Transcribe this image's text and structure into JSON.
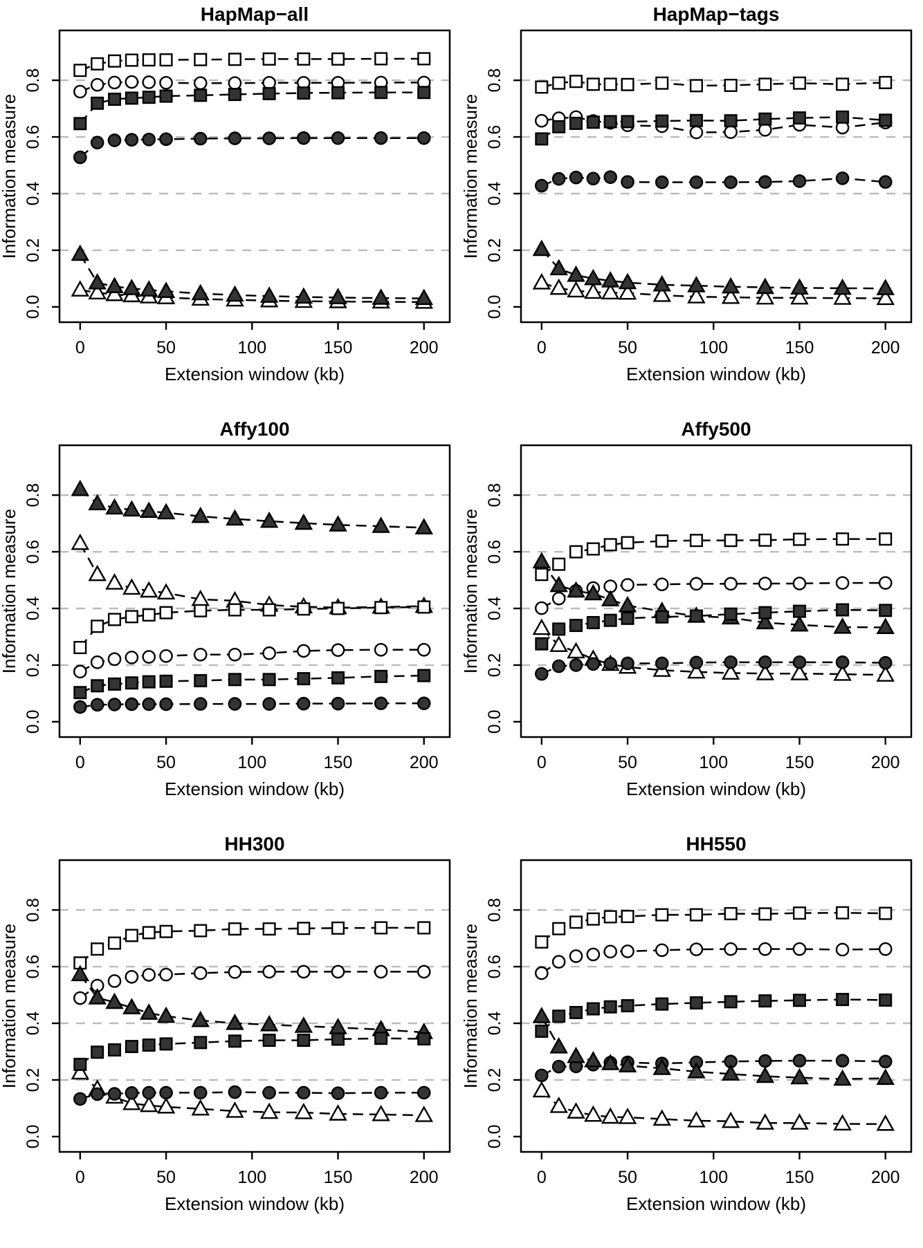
{
  "chart_data": {
    "type": "line",
    "layout": "2x3-grid",
    "legend": "none",
    "grid_on": true,
    "xlabel": "Extension window (kb)",
    "ylabel": "Information measure",
    "x": [
      0,
      10,
      20,
      30,
      40,
      50,
      70,
      90,
      110,
      130,
      150,
      175,
      200
    ],
    "xticks": [
      0,
      50,
      100,
      150,
      200
    ],
    "yticks": [
      "0.0",
      "0.2",
      "0.4",
      "0.6",
      "0.8"
    ],
    "ytick_values": [
      0.0,
      0.2,
      0.4,
      0.6,
      0.8
    ],
    "grid_y": [
      0.2,
      0.4,
      0.6,
      0.8
    ],
    "xlim": [
      -12,
      215
    ],
    "ylim": [
      -0.054,
      0.976
    ],
    "draw_order": [
      "open-circle",
      "open-triangle",
      "open-square",
      "filled-circle",
      "filled-triangle",
      "filled-square"
    ],
    "colors": {
      "marker_fill_dark": "#343434",
      "marker_fill_open": "#ffffff",
      "stroke": "#000000",
      "gridline": "#bbbbbb",
      "background": "#ffffff"
    },
    "marker_key": {
      "open-square": "square-open-icon",
      "filled-square": "square-filled-icon",
      "open-circle": "circle-open-icon",
      "filled-circle": "circle-filled-icon",
      "open-triangle": "triangle-open-icon",
      "filled-triangle": "triangle-filled-icon"
    },
    "panels": [
      {
        "id": "hapmap-all",
        "title": "HapMap−all",
        "series": [
          {
            "name": "open-square",
            "marker": "square",
            "filled": false,
            "values": [
              0.835,
              0.858,
              0.868,
              0.871,
              0.872,
              0.872,
              0.873,
              0.874,
              0.875,
              0.875,
              0.875,
              0.876,
              0.876
            ]
          },
          {
            "name": "open-circle",
            "marker": "circle",
            "filled": false,
            "values": [
              0.76,
              0.784,
              0.792,
              0.794,
              0.793,
              0.791,
              0.79,
              0.79,
              0.791,
              0.791,
              0.791,
              0.792,
              0.792
            ]
          },
          {
            "name": "filled-square",
            "marker": "square",
            "filled": true,
            "values": [
              0.647,
              0.719,
              0.733,
              0.737,
              0.74,
              0.744,
              0.747,
              0.75,
              0.753,
              0.755,
              0.756,
              0.757,
              0.757
            ]
          },
          {
            "name": "filled-circle",
            "marker": "circle",
            "filled": true,
            "values": [
              0.528,
              0.58,
              0.588,
              0.59,
              0.591,
              0.592,
              0.594,
              0.595,
              0.595,
              0.596,
              0.596,
              0.596,
              0.596
            ]
          },
          {
            "name": "filled-triangle",
            "marker": "triangle",
            "filled": true,
            "values": [
              0.186,
              0.085,
              0.072,
              0.065,
              0.06,
              0.055,
              0.047,
              0.042,
              0.038,
              0.035,
              0.033,
              0.031,
              0.03
            ]
          },
          {
            "name": "open-triangle",
            "marker": "triangle",
            "filled": false,
            "values": [
              0.06,
              0.05,
              0.044,
              0.04,
              0.036,
              0.033,
              0.028,
              0.025,
              0.022,
              0.02,
              0.019,
              0.018,
              0.017
            ]
          }
        ]
      },
      {
        "id": "hapmap-tags",
        "title": "HapMap−tags",
        "series": [
          {
            "name": "open-square",
            "marker": "square",
            "filled": false,
            "values": [
              0.776,
              0.79,
              0.796,
              0.786,
              0.786,
              0.785,
              0.79,
              0.781,
              0.782,
              0.786,
              0.79,
              0.786,
              0.792
            ]
          },
          {
            "name": "open-circle",
            "marker": "circle",
            "filled": false,
            "values": [
              0.657,
              0.666,
              0.67,
              0.656,
              0.65,
              0.641,
              0.638,
              0.616,
              0.617,
              0.625,
              0.643,
              0.633,
              0.651
            ]
          },
          {
            "name": "filled-square",
            "marker": "square",
            "filled": true,
            "values": [
              0.593,
              0.636,
              0.648,
              0.652,
              0.654,
              0.654,
              0.656,
              0.658,
              0.657,
              0.663,
              0.667,
              0.67,
              0.659
            ]
          },
          {
            "name": "filled-circle",
            "marker": "circle",
            "filled": true,
            "values": [
              0.428,
              0.452,
              0.457,
              0.453,
              0.458,
              0.441,
              0.44,
              0.44,
              0.44,
              0.441,
              0.444,
              0.454,
              0.441
            ]
          },
          {
            "name": "filled-triangle",
            "marker": "triangle",
            "filled": true,
            "values": [
              0.203,
              0.135,
              0.112,
              0.1,
              0.092,
              0.086,
              0.078,
              0.075,
              0.071,
              0.069,
              0.067,
              0.066,
              0.065
            ]
          },
          {
            "name": "open-triangle",
            "marker": "triangle",
            "filled": false,
            "values": [
              0.085,
              0.066,
              0.057,
              0.052,
              0.05,
              0.049,
              0.041,
              0.036,
              0.034,
              0.032,
              0.032,
              0.031,
              0.03
            ]
          }
        ]
      },
      {
        "id": "affy100",
        "title": "Affy100",
        "series": [
          {
            "name": "filled-triangle",
            "marker": "triangle",
            "filled": true,
            "values": [
              0.82,
              0.77,
              0.755,
              0.748,
              0.743,
              0.738,
              0.725,
              0.716,
              0.708,
              0.701,
              0.695,
              0.69,
              0.685
            ]
          },
          {
            "name": "open-triangle",
            "marker": "triangle",
            "filled": false,
            "values": [
              0.63,
              0.52,
              0.49,
              0.472,
              0.462,
              0.455,
              0.432,
              0.427,
              0.412,
              0.406,
              0.403,
              0.405,
              0.408
            ]
          },
          {
            "name": "open-square",
            "marker": "square",
            "filled": false,
            "values": [
              0.262,
              0.337,
              0.361,
              0.371,
              0.377,
              0.385,
              0.392,
              0.395,
              0.395,
              0.398,
              0.4,
              0.403,
              0.405
            ]
          },
          {
            "name": "open-circle",
            "marker": "circle",
            "filled": false,
            "values": [
              0.177,
              0.21,
              0.221,
              0.227,
              0.229,
              0.232,
              0.237,
              0.237,
              0.242,
              0.25,
              0.253,
              0.254,
              0.254
            ]
          },
          {
            "name": "filled-square",
            "marker": "square",
            "filled": true,
            "values": [
              0.103,
              0.127,
              0.133,
              0.137,
              0.141,
              0.143,
              0.145,
              0.149,
              0.149,
              0.152,
              0.155,
              0.16,
              0.163
            ]
          },
          {
            "name": "filled-circle",
            "marker": "circle",
            "filled": true,
            "values": [
              0.052,
              0.06,
              0.061,
              0.062,
              0.062,
              0.062,
              0.063,
              0.063,
              0.063,
              0.064,
              0.064,
              0.065,
              0.065
            ]
          }
        ]
      },
      {
        "id": "affy500",
        "title": "Affy500",
        "series": [
          {
            "name": "open-square",
            "marker": "square",
            "filled": false,
            "values": [
              0.52,
              0.556,
              0.6,
              0.61,
              0.625,
              0.632,
              0.638,
              0.64,
              0.64,
              0.641,
              0.644,
              0.645,
              0.645
            ]
          },
          {
            "name": "open-circle",
            "marker": "circle",
            "filled": false,
            "values": [
              0.401,
              0.435,
              0.462,
              0.472,
              0.478,
              0.483,
              0.485,
              0.487,
              0.487,
              0.488,
              0.488,
              0.49,
              0.49
            ]
          },
          {
            "name": "filled-triangle",
            "marker": "triangle",
            "filled": true,
            "values": [
              0.565,
              0.481,
              0.462,
              0.452,
              0.431,
              0.41,
              0.39,
              0.373,
              0.367,
              0.35,
              0.342,
              0.334,
              0.333
            ]
          },
          {
            "name": "filled-square",
            "marker": "square",
            "filled": true,
            "values": [
              0.275,
              0.327,
              0.34,
              0.35,
              0.358,
              0.365,
              0.37,
              0.373,
              0.38,
              0.385,
              0.39,
              0.395,
              0.393
            ]
          },
          {
            "name": "open-triangle",
            "marker": "triangle",
            "filled": false,
            "values": [
              0.33,
              0.27,
              0.247,
              0.221,
              0.203,
              0.193,
              0.182,
              0.176,
              0.172,
              0.17,
              0.17,
              0.168,
              0.165
            ]
          },
          {
            "name": "filled-circle",
            "marker": "circle",
            "filled": true,
            "values": [
              0.169,
              0.196,
              0.2,
              0.204,
              0.205,
              0.206,
              0.206,
              0.209,
              0.21,
              0.21,
              0.21,
              0.21,
              0.208
            ]
          }
        ]
      },
      {
        "id": "hh300",
        "title": "HH300",
        "series": [
          {
            "name": "open-square",
            "marker": "square",
            "filled": false,
            "values": [
              0.613,
              0.662,
              0.683,
              0.71,
              0.72,
              0.724,
              0.727,
              0.733,
              0.733,
              0.735,
              0.736,
              0.737,
              0.737
            ]
          },
          {
            "name": "open-circle",
            "marker": "circle",
            "filled": false,
            "values": [
              0.489,
              0.533,
              0.549,
              0.564,
              0.571,
              0.572,
              0.577,
              0.581,
              0.582,
              0.582,
              0.582,
              0.582,
              0.582
            ]
          },
          {
            "name": "filled-triangle",
            "marker": "triangle",
            "filled": true,
            "values": [
              0.572,
              0.49,
              0.474,
              0.455,
              0.436,
              0.425,
              0.41,
              0.4,
              0.395,
              0.39,
              0.385,
              0.378,
              0.368
            ]
          },
          {
            "name": "filled-square",
            "marker": "square",
            "filled": true,
            "values": [
              0.255,
              0.298,
              0.306,
              0.318,
              0.323,
              0.327,
              0.332,
              0.337,
              0.34,
              0.34,
              0.344,
              0.347,
              0.345
            ]
          },
          {
            "name": "open-triangle",
            "marker": "triangle",
            "filled": false,
            "values": [
              0.225,
              0.168,
              0.14,
              0.117,
              0.11,
              0.105,
              0.098,
              0.09,
              0.086,
              0.085,
              0.08,
              0.078,
              0.075
            ]
          },
          {
            "name": "filled-circle",
            "marker": "circle",
            "filled": true,
            "values": [
              0.133,
              0.15,
              0.151,
              0.154,
              0.155,
              0.155,
              0.155,
              0.157,
              0.155,
              0.155,
              0.153,
              0.155,
              0.155
            ]
          }
        ]
      },
      {
        "id": "hh550",
        "title": "HH550",
        "series": [
          {
            "name": "open-square",
            "marker": "square",
            "filled": false,
            "values": [
              0.687,
              0.734,
              0.757,
              0.768,
              0.776,
              0.777,
              0.783,
              0.783,
              0.787,
              0.786,
              0.789,
              0.79,
              0.788
            ]
          },
          {
            "name": "open-circle",
            "marker": "circle",
            "filled": false,
            "values": [
              0.577,
              0.617,
              0.637,
              0.643,
              0.653,
              0.654,
              0.658,
              0.661,
              0.662,
              0.662,
              0.662,
              0.66,
              0.662
            ]
          },
          {
            "name": "filled-square",
            "marker": "square",
            "filled": true,
            "values": [
              0.372,
              0.425,
              0.438,
              0.451,
              0.458,
              0.462,
              0.468,
              0.472,
              0.476,
              0.479,
              0.481,
              0.484,
              0.482
            ]
          },
          {
            "name": "filled-triangle",
            "marker": "triangle",
            "filled": true,
            "values": [
              0.424,
              0.317,
              0.283,
              0.268,
              0.258,
              0.25,
              0.241,
              0.229,
              0.221,
              0.213,
              0.208,
              0.203,
              0.206
            ]
          },
          {
            "name": "filled-circle",
            "marker": "circle",
            "filled": true,
            "values": [
              0.216,
              0.247,
              0.248,
              0.254,
              0.261,
              0.262,
              0.258,
              0.262,
              0.265,
              0.267,
              0.268,
              0.268,
              0.265
            ]
          },
          {
            "name": "open-triangle",
            "marker": "triangle",
            "filled": false,
            "values": [
              0.162,
              0.107,
              0.087,
              0.076,
              0.069,
              0.068,
              0.062,
              0.056,
              0.054,
              0.048,
              0.048,
              0.045,
              0.044
            ]
          }
        ]
      }
    ]
  }
}
